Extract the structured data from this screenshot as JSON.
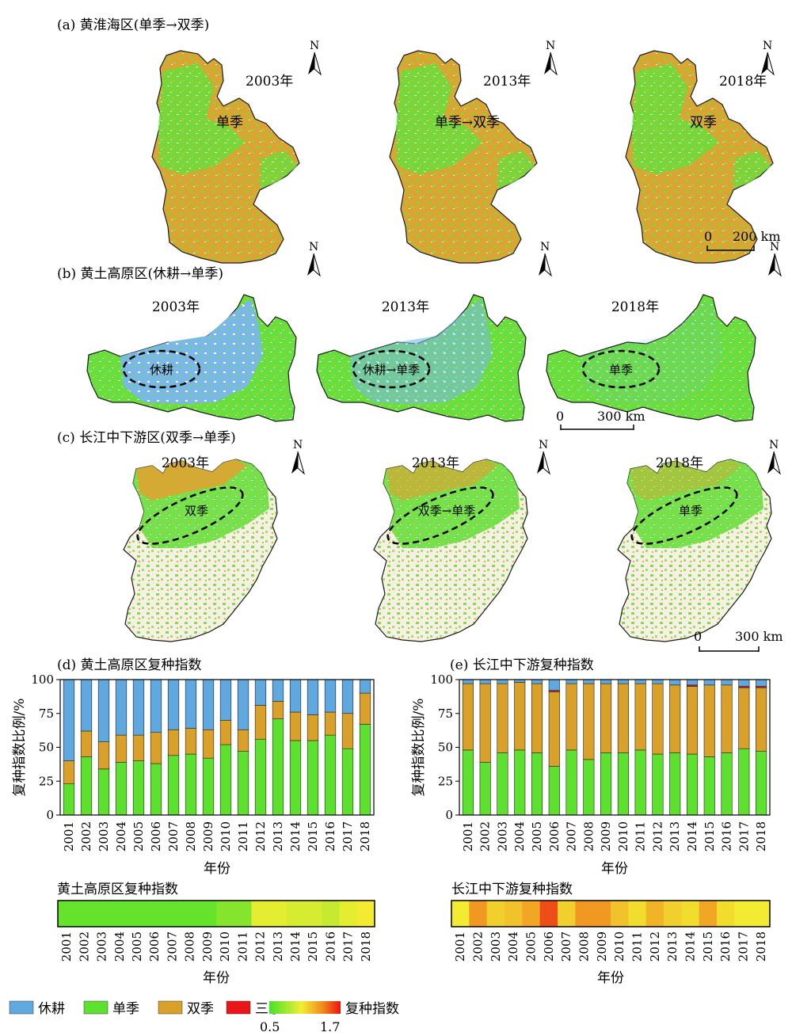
{
  "colors": {
    "fallow": "#5fa9e0",
    "single": "#5ee02e",
    "double": "#d9a12a",
    "triple": "#e8151b",
    "map_yellow": "#e0b040",
    "map_green": "#64e23a",
    "outline": "#1a1a1a"
  },
  "maps": {
    "a": {
      "title": "(a) 黄淮海区(单季→双季)",
      "panels": [
        {
          "year": "2003年",
          "label": "单季"
        },
        {
          "year": "2013年",
          "label": "单季→双季"
        },
        {
          "year": "2018年",
          "label": "双季"
        }
      ],
      "scale": {
        "zero": "0",
        "dist": "200 km"
      }
    },
    "b": {
      "title": "(b) 黄土高原区(休耕→单季)",
      "panels": [
        {
          "year": "2003年",
          "label": "休耕"
        },
        {
          "year": "2013年",
          "label": "休耕→单季"
        },
        {
          "year": "2018年",
          "label": "单季"
        }
      ],
      "scale": {
        "zero": "0",
        "dist": "300 km"
      }
    },
    "c": {
      "title": "(c) 长江中下游区(双季→单季)",
      "panels": [
        {
          "year": "2003年",
          "label": "双季"
        },
        {
          "year": "2013年",
          "label": "双季→单季"
        },
        {
          "year": "2018年",
          "label": "单季"
        }
      ],
      "scale": {
        "zero": "0",
        "dist": "300 km"
      }
    },
    "north": "N"
  },
  "chart_data": [
    {
      "type": "bar",
      "title": "(d) 黄土高原区复种指数",
      "xlabel": "年份",
      "ylabel": "复种指数比例/%",
      "ylim": [
        0,
        100
      ],
      "yticks": [
        0,
        25,
        50,
        75,
        100
      ],
      "stacked": true,
      "categories": [
        "2001",
        "2002",
        "2003",
        "2004",
        "2005",
        "2006",
        "2007",
        "2008",
        "2009",
        "2010",
        "2011",
        "2012",
        "2013",
        "2014",
        "2015",
        "2016",
        "2017",
        "2018"
      ],
      "series": [
        {
          "name": "单季",
          "values": [
            23,
            43,
            34,
            39,
            40,
            38,
            44,
            45,
            42,
            52,
            47,
            56,
            71,
            55,
            55,
            59,
            49,
            67
          ]
        },
        {
          "name": "双季",
          "values": [
            17,
            19,
            20,
            20,
            19,
            23,
            19,
            19,
            21,
            18,
            16,
            25,
            13,
            21,
            19,
            17,
            26,
            23
          ]
        },
        {
          "name": "三季",
          "values": [
            0,
            0,
            0,
            0,
            0,
            0,
            0,
            0,
            0,
            0,
            0,
            0,
            0,
            0,
            0,
            0,
            0,
            0
          ]
        },
        {
          "name": "休耕",
          "values": [
            60,
            38,
            46,
            41,
            41,
            39,
            37,
            36,
            37,
            30,
            37,
            19,
            16,
            24,
            26,
            24,
            25,
            10
          ]
        }
      ]
    },
    {
      "type": "bar",
      "title": "(e) 长江中下游复种指数",
      "xlabel": "年份",
      "ylabel": "复种指数比例/%",
      "ylim": [
        0,
        100
      ],
      "yticks": [
        0,
        25,
        50,
        75,
        100
      ],
      "stacked": true,
      "categories": [
        "2001",
        "2002",
        "2003",
        "2004",
        "2005",
        "2006",
        "2007",
        "2008",
        "2009",
        "2010",
        "2011",
        "2012",
        "2013",
        "2014",
        "2015",
        "2016",
        "2017",
        "2018"
      ],
      "series": [
        {
          "name": "单季",
          "values": [
            48,
            39,
            46,
            48,
            46,
            36,
            48,
            41,
            46,
            46,
            48,
            45,
            46,
            45,
            43,
            46,
            49,
            47
          ]
        },
        {
          "name": "双季",
          "values": [
            49,
            58,
            51,
            50,
            51,
            55,
            49,
            56,
            51,
            51,
            49,
            52,
            50,
            50,
            53,
            50,
            45,
            47
          ]
        },
        {
          "name": "三季",
          "values": [
            0,
            0,
            0,
            0,
            0,
            1,
            0,
            0,
            0,
            0,
            0,
            0,
            0,
            1,
            0,
            0,
            1,
            1
          ]
        },
        {
          "name": "休耕",
          "values": [
            3,
            3,
            3,
            2,
            3,
            8,
            3,
            3,
            3,
            3,
            3,
            3,
            4,
            4,
            4,
            4,
            5,
            5
          ]
        }
      ]
    },
    {
      "type": "heatmap",
      "title": "黄土高原区复种指数",
      "xlabel": "年份",
      "categories": [
        "2001",
        "2002",
        "2003",
        "2004",
        "2005",
        "2006",
        "2007",
        "2008",
        "2009",
        "2010",
        "2011",
        "2012",
        "2013",
        "2014",
        "2015",
        "2016",
        "2017",
        "2018"
      ],
      "values": [
        0.6,
        0.6,
        0.6,
        0.6,
        0.6,
        0.6,
        0.6,
        0.6,
        0.6,
        0.7,
        0.7,
        1.0,
        1.0,
        0.95,
        0.95,
        0.9,
        1.0,
        1.05
      ],
      "range": [
        0.5,
        1.7
      ]
    },
    {
      "type": "heatmap",
      "title": "长江中下游复种指数",
      "xlabel": "年份",
      "categories": [
        "2001",
        "2002",
        "2003",
        "2004",
        "2005",
        "2006",
        "2007",
        "2008",
        "2009",
        "2010",
        "2011",
        "2012",
        "2013",
        "2014",
        "2015",
        "2016",
        "2017",
        "2018"
      ],
      "values": [
        1.05,
        1.35,
        1.15,
        1.2,
        1.3,
        1.55,
        1.15,
        1.35,
        1.35,
        1.2,
        1.1,
        1.25,
        1.15,
        1.1,
        1.3,
        1.1,
        1.05,
        1.05
      ],
      "range": [
        0.5,
        1.7
      ]
    }
  ],
  "legend": {
    "items": [
      {
        "name": "休耕",
        "color": "#5fa9e0"
      },
      {
        "name": "单季",
        "color": "#5ee02e"
      },
      {
        "name": "双季",
        "color": "#d9a12a"
      },
      {
        "name": "三季",
        "color": "#e8151b"
      }
    ],
    "gradient_label": "复种指数",
    "gradient_min": "0.5",
    "gradient_max": "1.7"
  }
}
